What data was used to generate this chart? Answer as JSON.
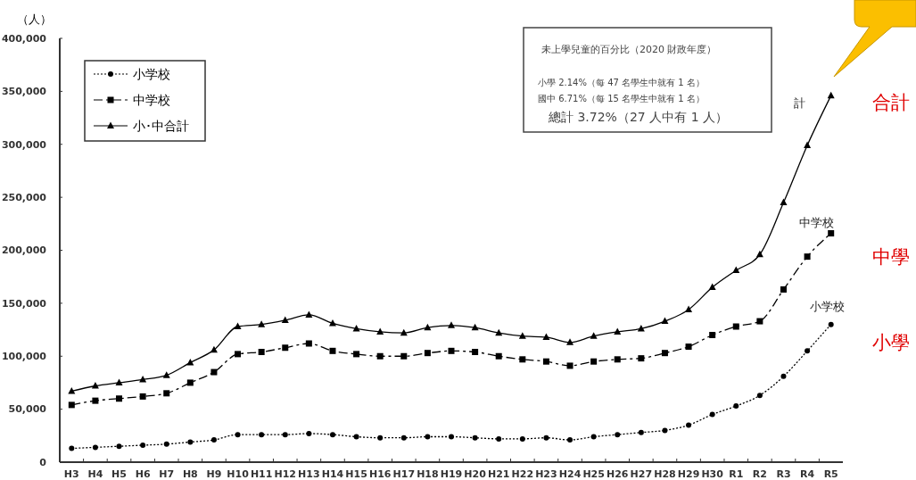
{
  "chart_data": {
    "type": "line",
    "ylabel": "（人）",
    "categories": [
      "H3",
      "H4",
      "H5",
      "H6",
      "H7",
      "H8",
      "H9",
      "H10",
      "H11",
      "H12",
      "H13",
      "H14",
      "H15",
      "H16",
      "H17",
      "H18",
      "H19",
      "H20",
      "H21",
      "H22",
      "H23",
      "H24",
      "H25",
      "H26",
      "H27",
      "H28",
      "H29",
      "H30",
      "R1",
      "R2",
      "R3",
      "R4",
      "R5"
    ],
    "series": [
      {
        "name": "小学校",
        "color": "#000000",
        "marker": "circle",
        "line_style": "dotted",
        "values": [
          13000,
          14000,
          15000,
          16000,
          17000,
          19000,
          21000,
          26000,
          26000,
          26000,
          27000,
          26000,
          24000,
          23000,
          23000,
          24000,
          24000,
          23000,
          22000,
          22000,
          23000,
          21000,
          24000,
          26000,
          28000,
          30000,
          35000,
          45000,
          53000,
          63000,
          81000,
          105000,
          130000
        ]
      },
      {
        "name": "中学校",
        "color": "#000000",
        "marker": "square",
        "line_style": "dashed",
        "values": [
          54000,
          58000,
          60000,
          62000,
          65000,
          75000,
          85000,
          102000,
          104000,
          108000,
          112000,
          105000,
          102000,
          100000,
          100000,
          103000,
          105000,
          104000,
          100000,
          97000,
          95000,
          91000,
          95000,
          97000,
          98000,
          103000,
          109000,
          120000,
          128000,
          133000,
          163000,
          194000,
          216000
        ]
      },
      {
        "name": "小･中合計",
        "color": "#000000",
        "marker": "triangle",
        "line_style": "solid",
        "values": [
          67000,
          72000,
          75000,
          78000,
          82000,
          94000,
          106000,
          128000,
          130000,
          134000,
          139000,
          131000,
          126000,
          123000,
          122000,
          127000,
          129000,
          127000,
          122000,
          119000,
          118000,
          113000,
          119000,
          123000,
          126000,
          133000,
          144000,
          165000,
          181000,
          196000,
          245000,
          299000,
          346000
        ]
      }
    ],
    "ylim": [
      0,
      400000
    ],
    "yticks": [
      {
        "value": 0,
        "label": "0"
      },
      {
        "value": 50000,
        "label": "50,000"
      },
      {
        "value": 100000,
        "label": "100,000"
      },
      {
        "value": 150000,
        "label": "150,000"
      },
      {
        "value": 200000,
        "label": "200,000"
      },
      {
        "value": 250000,
        "label": "250,000"
      },
      {
        "value": 300000,
        "label": "300,000"
      },
      {
        "value": 350000,
        "label": "350,000"
      },
      {
        "value": 400000,
        "label": "400,000"
      }
    ],
    "grid": false,
    "legend": "top left",
    "annotations": [
      "未上學兒童的百分比（2020 財政年度）",
      "小學 2.14%（每 47 名學生中就有 1 名）",
      "國中 6.71%（每 15 名學生中就有 1 名）",
      "總計 3.72%（27 人中有 1 人）",
      {
        "text": "計",
        "x": "R5",
        "y": 346000
      },
      {
        "text": "中学校",
        "x": "R5",
        "y": 216000
      },
      {
        "text": "小学校",
        "x": "R5",
        "y": 130000
      },
      {
        "text": "合計",
        "x": "R5",
        "y": 346000
      },
      {
        "text": "中學",
        "x": "R5",
        "y": 216000
      },
      {
        "text": "小學",
        "x": "R5",
        "y": 130000
      }
    ]
  }
}
